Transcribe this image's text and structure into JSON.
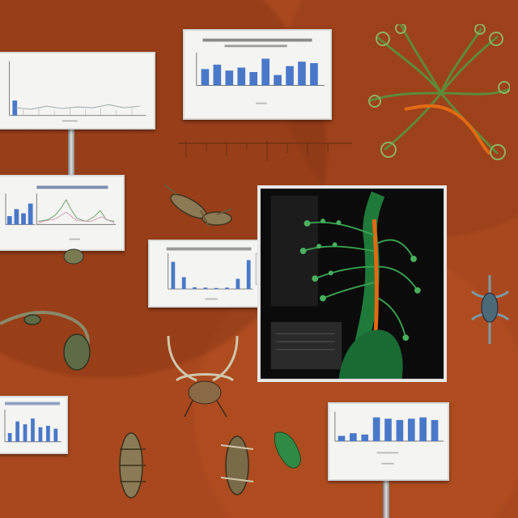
{
  "scene": {
    "background_color": "#a9481e",
    "panel_color": "#f4f4f2",
    "bar_color": "#4a78c9",
    "vine_color": "#1f7a3a",
    "stem_color": "#e36a12"
  },
  "charts": {
    "top_left": {
      "bars": [
        0.35
      ]
    },
    "top_center": {
      "bars": [
        0.55,
        0.7,
        0.5,
        0.6,
        0.45,
        0.9,
        0.35,
        0.65,
        0.8,
        0.75
      ]
    },
    "mid_left": {
      "bars": [
        0.3,
        0.55,
        0.4,
        0.75
      ]
    },
    "center": {
      "bars": [
        0.8,
        0.35,
        0.05,
        0.04,
        0.03,
        0.04,
        0.3,
        0.85
      ]
    },
    "bottom_left": {
      "bars": [
        0.3,
        0.7,
        0.6,
        0.8,
        0.5,
        0.55,
        0.45
      ]
    },
    "bottom_right": {
      "bars": [
        0.2,
        0.3,
        0.25,
        0.9,
        0.85,
        0.8,
        0.85,
        0.9,
        0.8
      ]
    }
  },
  "icons": {
    "vine_cluster": "vine-cluster-icon",
    "insect": "insect-icon",
    "plant_photo": "plant-photo-icon"
  }
}
